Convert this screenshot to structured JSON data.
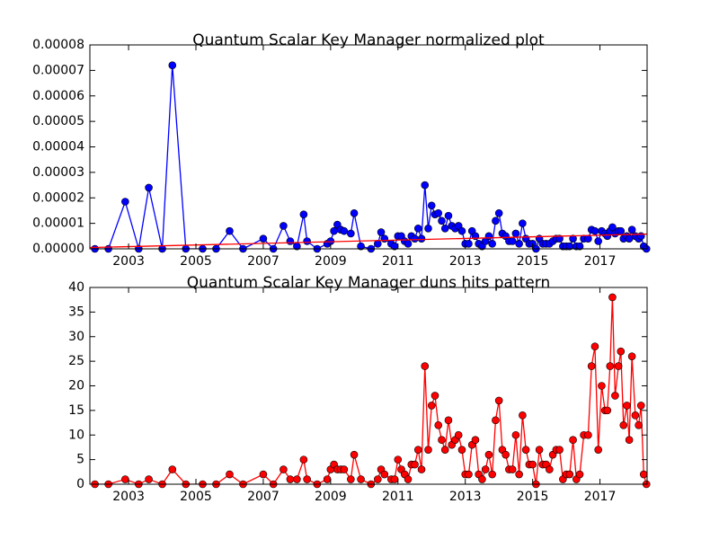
{
  "chart_data": [
    {
      "type": "line",
      "title": "Quantum Scalar Key Manager normalized plot",
      "x": [
        2002.0,
        2002.4,
        2002.9,
        2003.3,
        2003.6,
        2004.0,
        2004.3,
        2004.7,
        2005.2,
        2005.6,
        2006.0,
        2006.4,
        2007.0,
        2007.3,
        2007.6,
        2007.8,
        2008.0,
        2008.2,
        2008.3,
        2008.6,
        2008.9,
        2009.0,
        2009.1,
        2009.2,
        2009.3,
        2009.4,
        2009.6,
        2009.7,
        2009.9,
        2010.2,
        2010.4,
        2010.5,
        2010.6,
        2010.8,
        2010.9,
        2011.0,
        2011.1,
        2011.2,
        2011.3,
        2011.4,
        2011.5,
        2011.6,
        2011.7,
        2011.8,
        2011.9,
        2012.0,
        2012.1,
        2012.2,
        2012.3,
        2012.4,
        2012.5,
        2012.6,
        2012.7,
        2012.8,
        2012.9,
        2013.0,
        2013.1,
        2013.2,
        2013.3,
        2013.4,
        2013.5,
        2013.6,
        2013.7,
        2013.8,
        2013.9,
        2014.0,
        2014.1,
        2014.2,
        2014.3,
        2014.4,
        2014.5,
        2014.6,
        2014.7,
        2014.8,
        2014.9,
        2015.0,
        2015.1,
        2015.2,
        2015.3,
        2015.4,
        2015.5,
        2015.6,
        2015.7,
        2015.8,
        2015.9,
        2016.0,
        2016.1,
        2016.2,
        2016.3,
        2016.4,
        2016.52,
        2016.65,
        2016.75,
        2016.85,
        2016.95,
        2017.05,
        2017.15,
        2017.22,
        2017.3,
        2017.37,
        2017.45,
        2017.55,
        2017.62,
        2017.7,
        2017.8,
        2017.87,
        2017.95,
        2018.05,
        2018.15,
        2018.22,
        2018.3,
        2018.38
      ],
      "series": [
        {
          "color": "#0000ff",
          "marker": true,
          "values": [
            0,
            0,
            1.85e-05,
            0,
            2.4e-05,
            0,
            7.2e-05,
            0,
            0,
            0,
            7e-06,
            0,
            4e-06,
            0,
            9e-06,
            3e-06,
            1e-06,
            1.35e-05,
            3e-06,
            0,
            2e-06,
            3e-06,
            7e-06,
            9.5e-06,
            7.5e-06,
            7e-06,
            6e-06,
            1.4e-05,
            1e-06,
            0,
            2e-06,
            6.5e-06,
            4e-06,
            2e-06,
            1e-06,
            5e-06,
            5e-06,
            3e-06,
            2e-06,
            5e-06,
            4e-06,
            8e-06,
            4e-06,
            2.5e-05,
            8e-06,
            1.7e-05,
            1.35e-05,
            1.4e-05,
            1.1e-05,
            8e-06,
            1.3e-05,
            9e-06,
            8e-06,
            9e-06,
            7e-06,
            2e-06,
            2e-06,
            7e-06,
            5e-06,
            2e-06,
            1e-06,
            3e-06,
            5e-06,
            2e-06,
            1.1e-05,
            1.4e-05,
            6e-06,
            5e-06,
            3e-06,
            3e-06,
            6e-06,
            2e-06,
            1e-05,
            4e-06,
            2e-06,
            2e-06,
            0,
            4e-06,
            2e-06,
            2e-06,
            2e-06,
            3e-06,
            4e-06,
            4e-06,
            1e-06,
            1e-06,
            1e-06,
            4e-06,
            1e-06,
            1e-06,
            4e-06,
            4e-06,
            7.5e-06,
            7e-06,
            3e-06,
            7e-06,
            6e-06,
            5e-06,
            7e-06,
            8.5e-06,
            6e-06,
            7e-06,
            7e-06,
            4e-06,
            5e-06,
            4e-06,
            7.5e-06,
            5e-06,
            4e-06,
            5e-06,
            1e-06,
            0
          ]
        },
        {
          "color": "#ff0000",
          "marker": false,
          "x": [
            2001.85,
            2018.4
          ],
          "values": [
            5e-07,
            5.8e-06
          ]
        }
      ],
      "xlim": [
        2001.85,
        2018.4
      ],
      "xticks": [
        2003,
        2005,
        2007,
        2009,
        2011,
        2013,
        2015,
        2017
      ],
      "ylim": [
        0,
        8e-05
      ],
      "yticks": [
        {
          "value": 0,
          "label": "0.00000"
        },
        {
          "value": 1e-05,
          "label": "0.00001"
        },
        {
          "value": 2e-05,
          "label": "0.00002"
        },
        {
          "value": 3e-05,
          "label": "0.00003"
        },
        {
          "value": 4e-05,
          "label": "0.00004"
        },
        {
          "value": 5e-05,
          "label": "0.00005"
        },
        {
          "value": 6e-05,
          "label": "0.00006"
        },
        {
          "value": 7e-05,
          "label": "0.00007"
        },
        {
          "value": 8e-05,
          "label": "0.00008"
        }
      ]
    },
    {
      "type": "line",
      "title": "Quantum Scalar Key Manager duns hits pattern",
      "x": [
        2002.0,
        2002.4,
        2002.9,
        2003.3,
        2003.6,
        2004.0,
        2004.3,
        2004.7,
        2005.2,
        2005.6,
        2006.0,
        2006.4,
        2007.0,
        2007.3,
        2007.6,
        2007.8,
        2008.0,
        2008.2,
        2008.3,
        2008.6,
        2008.9,
        2009.0,
        2009.1,
        2009.2,
        2009.3,
        2009.4,
        2009.6,
        2009.7,
        2009.9,
        2010.2,
        2010.4,
        2010.5,
        2010.6,
        2010.8,
        2010.9,
        2011.0,
        2011.1,
        2011.2,
        2011.3,
        2011.4,
        2011.5,
        2011.6,
        2011.7,
        2011.8,
        2011.9,
        2012.0,
        2012.1,
        2012.2,
        2012.3,
        2012.4,
        2012.5,
        2012.6,
        2012.7,
        2012.8,
        2012.9,
        2013.0,
        2013.1,
        2013.2,
        2013.3,
        2013.4,
        2013.5,
        2013.6,
        2013.7,
        2013.8,
        2013.9,
        2014.0,
        2014.1,
        2014.2,
        2014.3,
        2014.4,
        2014.5,
        2014.6,
        2014.7,
        2014.8,
        2014.9,
        2015.0,
        2015.1,
        2015.2,
        2015.3,
        2015.4,
        2015.5,
        2015.6,
        2015.7,
        2015.8,
        2015.9,
        2016.0,
        2016.1,
        2016.2,
        2016.3,
        2016.4,
        2016.52,
        2016.65,
        2016.75,
        2016.85,
        2016.95,
        2017.05,
        2017.15,
        2017.22,
        2017.3,
        2017.37,
        2017.45,
        2017.55,
        2017.62,
        2017.7,
        2017.8,
        2017.87,
        2017.95,
        2018.05,
        2018.15,
        2018.22,
        2018.3,
        2018.38
      ],
      "series": [
        {
          "color": "#ff0000",
          "marker": true,
          "values": [
            0,
            0,
            1,
            0,
            1,
            0,
            3,
            0,
            0,
            0,
            2,
            0,
            2,
            0,
            3,
            1,
            1,
            5,
            1,
            0,
            1,
            3,
            4,
            3,
            3,
            3,
            1,
            6,
            1,
            0,
            1,
            3,
            2,
            1,
            1,
            5,
            3,
            2,
            1,
            4,
            4,
            7,
            3,
            24,
            7,
            16,
            18,
            12,
            9,
            7,
            13,
            8,
            9,
            10,
            7,
            2,
            2,
            8,
            9,
            2,
            1,
            3,
            6,
            2,
            13,
            17,
            7,
            6,
            3,
            3,
            10,
            2,
            14,
            7,
            4,
            4,
            0,
            7,
            4,
            4,
            3,
            6,
            7,
            7,
            1,
            2,
            2,
            9,
            1,
            2,
            10,
            10,
            24,
            28,
            7,
            20,
            15,
            15,
            24,
            38,
            18,
            24,
            27,
            12,
            16,
            9,
            26,
            14,
            12,
            16,
            2,
            0
          ]
        }
      ],
      "xlim": [
        2001.85,
        2018.4
      ],
      "xticks": [
        2003,
        2005,
        2007,
        2009,
        2011,
        2013,
        2015,
        2017
      ],
      "ylim": [
        0,
        40
      ],
      "yticks": [
        0,
        5,
        10,
        15,
        20,
        25,
        30,
        35,
        40
      ]
    }
  ]
}
